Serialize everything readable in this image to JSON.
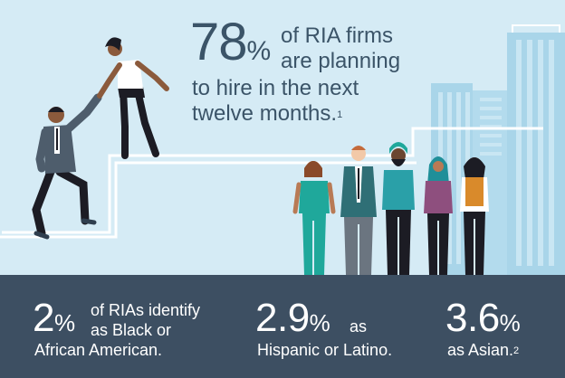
{
  "headline": {
    "number": "78",
    "percent_sign": "%",
    "line1": "of RIA firms",
    "line2": "are planning",
    "line3": "to hire in the next",
    "line4": "twelve months.",
    "footnote": "1"
  },
  "stats": [
    {
      "number": "2",
      "percent_sign": "%",
      "line1": "of RIAs identify",
      "line2": "as Black or",
      "line3": "African American."
    },
    {
      "number": "2.9",
      "percent_sign": "%",
      "line1": "as",
      "line2": "Hispanic or Latino."
    },
    {
      "number": "3.6",
      "percent_sign": "%",
      "line1": "as Asian.",
      "footnote": "2"
    }
  ],
  "colors": {
    "sky": "#d5ebf5",
    "footer": "#3d4f62",
    "headline_text": "#3b5468",
    "building": "#a9d5e9",
    "building_window": "#c9e6f3",
    "stairs": "#ffffff"
  }
}
